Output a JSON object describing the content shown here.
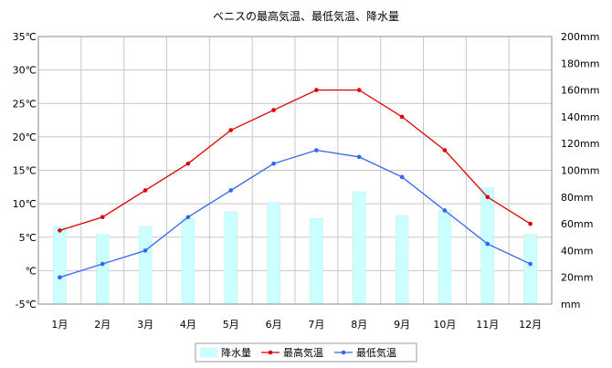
{
  "chart_data": {
    "type": "bar+line",
    "title": "ベニスの最高気温、最低気温、降水量",
    "categories": [
      "1月",
      "2月",
      "3月",
      "4月",
      "5月",
      "6月",
      "7月",
      "8月",
      "9月",
      "10月",
      "11月",
      "12月"
    ],
    "y_left": {
      "min": -5,
      "max": 35,
      "step": 5,
      "tick_labels": [
        "-5℃",
        "℃",
        "5℃",
        "10℃",
        "15℃",
        "20℃",
        "25℃",
        "30℃",
        "35℃"
      ]
    },
    "y_right": {
      "min": 0,
      "max": 200,
      "step": 20,
      "tick_labels": [
        "mm",
        "20mm",
        "40mm",
        "60mm",
        "80mm",
        "100mm",
        "120mm",
        "140mm",
        "160mm",
        "180mm",
        "200mm"
      ]
    },
    "series": [
      {
        "name": "降水量",
        "type": "bar",
        "axis": "right",
        "color": "#ccffff",
        "values": [
          58,
          52,
          58,
          64,
          69,
          76,
          64,
          84,
          66,
          70,
          87,
          52
        ]
      },
      {
        "name": "最高気温",
        "type": "line",
        "axis": "left",
        "color": "#dd0000",
        "values": [
          6,
          8,
          12,
          16,
          21,
          24,
          27,
          27,
          23,
          18,
          11,
          7
        ]
      },
      {
        "name": "最低気温",
        "type": "line",
        "axis": "left",
        "color": "#3366ee",
        "values": [
          -1,
          1,
          3,
          8,
          12,
          16,
          18,
          17,
          14,
          9,
          4,
          1
        ]
      }
    ],
    "grid": true,
    "legend_position": "bottom"
  }
}
